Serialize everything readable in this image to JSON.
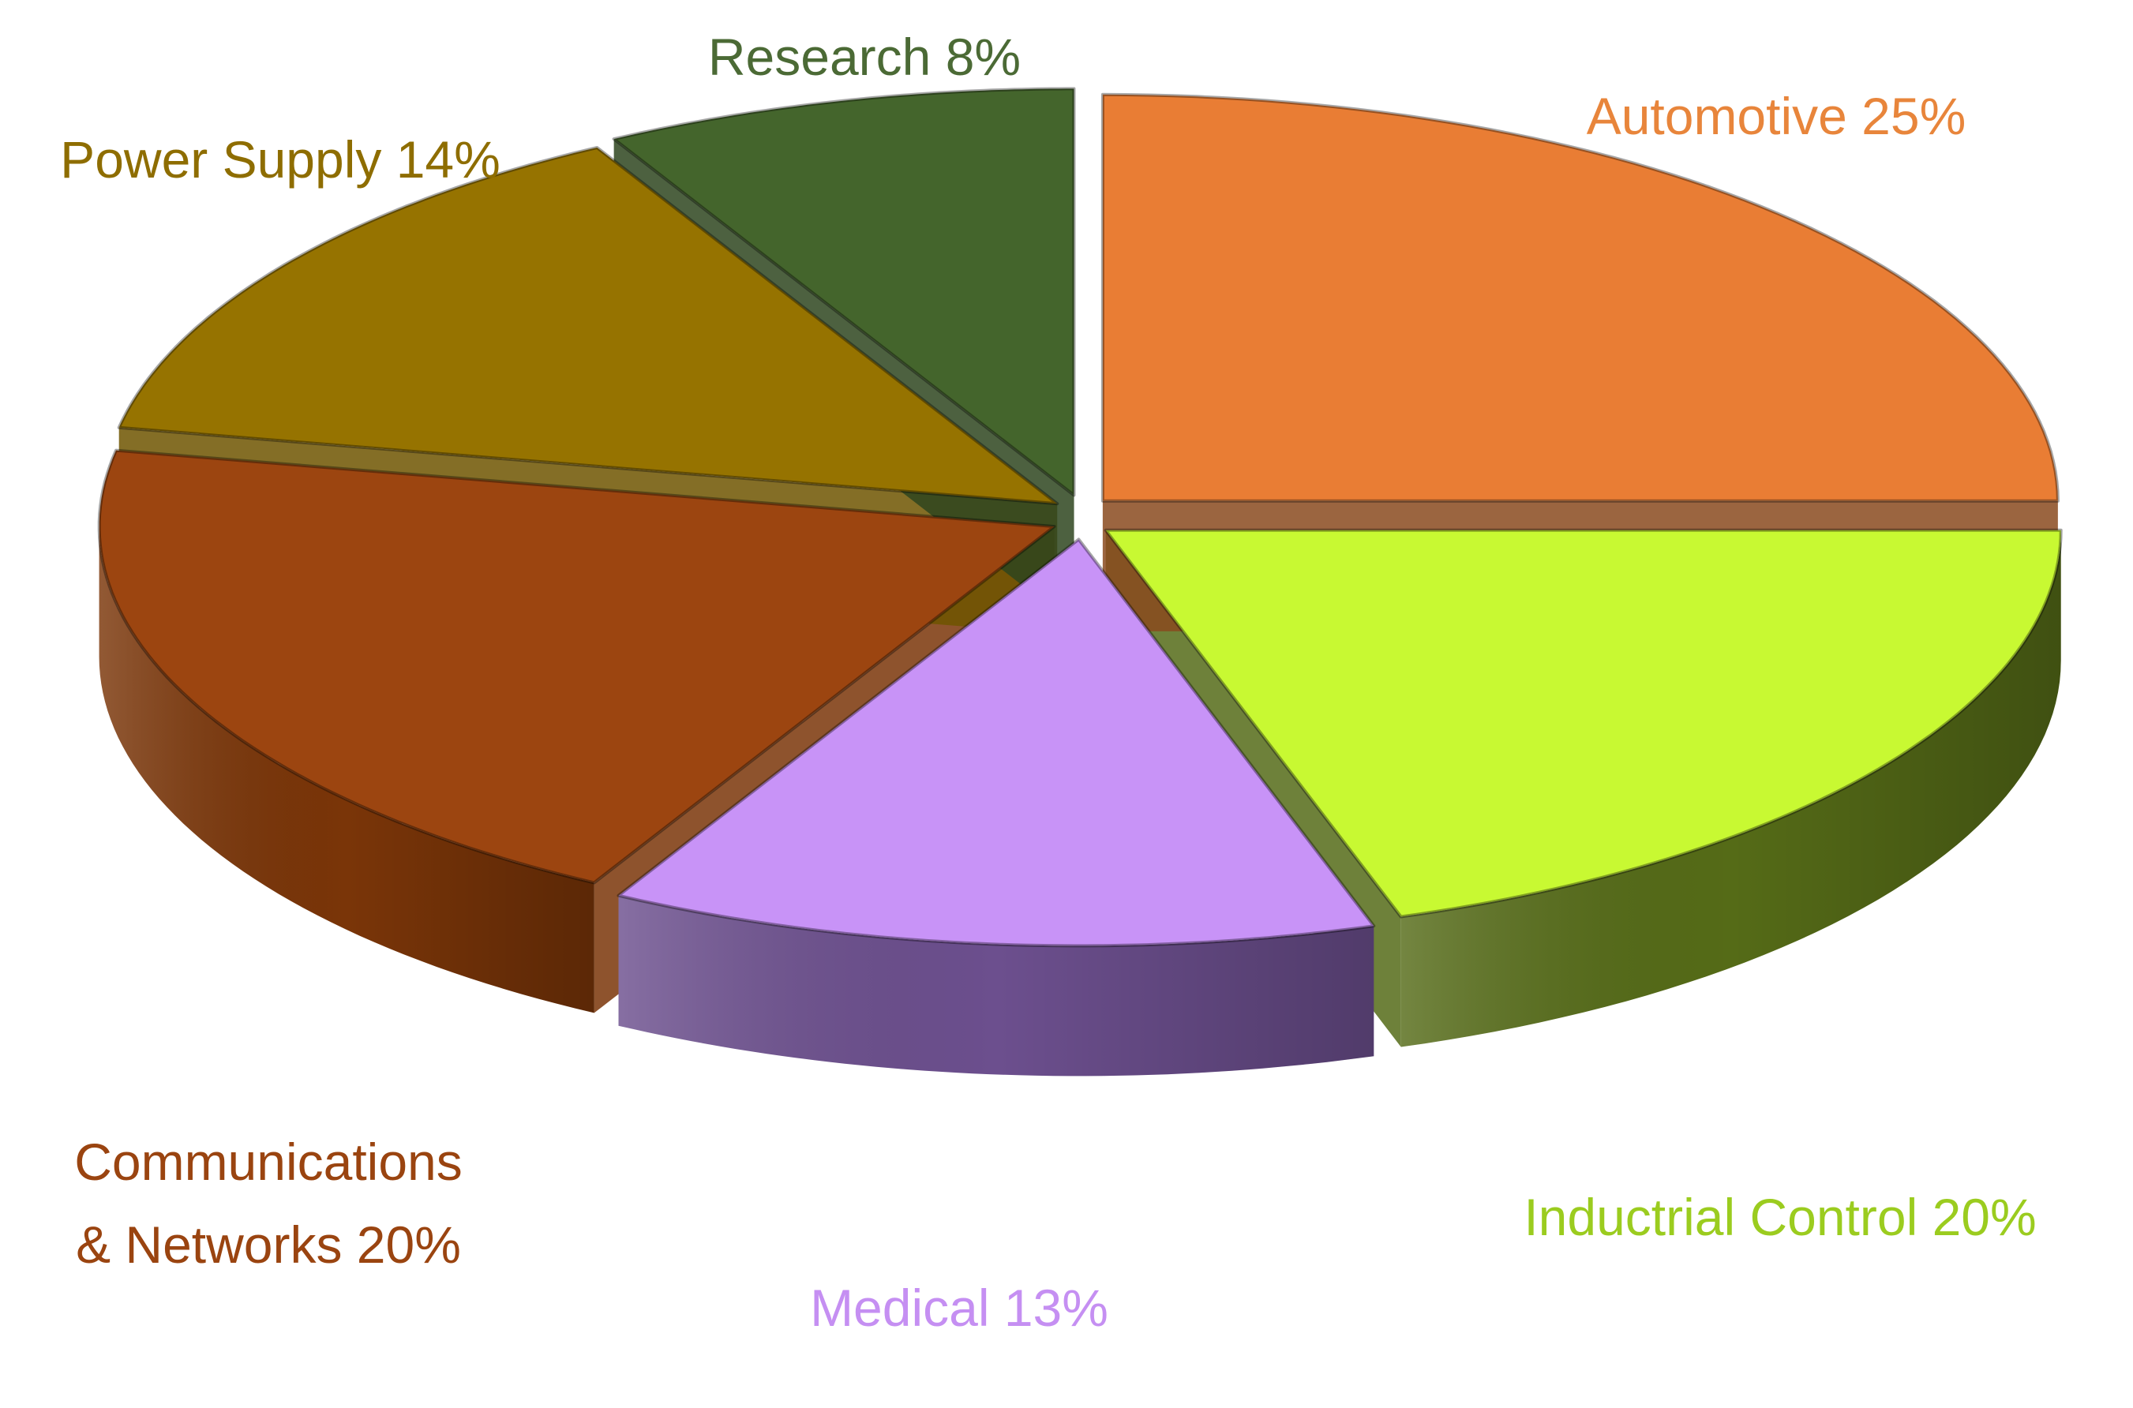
{
  "chart_data": {
    "type": "pie",
    "style": "3d-exploded",
    "title": "",
    "slices": [
      {
        "label": "Automotive 25%",
        "name": "Automotive",
        "value": 25,
        "color": "#E97D34",
        "side_color": "#8A4A1E"
      },
      {
        "label": "Inductrial Control 20%",
        "name": "Inductrial Control",
        "value": 20,
        "color": "#C8F932",
        "side_color": "#556B17"
      },
      {
        "label": "Medical 13%",
        "name": "Medical",
        "value": 13,
        "color": "#C893F7",
        "side_color": "#6C4F8E"
      },
      {
        "label": "Communications\n& Networks 20%",
        "name": "Communications & Networks",
        "value": 20,
        "color": "#9C4510",
        "side_color": "#7A3508"
      },
      {
        "label": "Power Supply 14%",
        "name": "Power Supply",
        "value": 14,
        "color": "#967300",
        "side_color": "#6E5500"
      },
      {
        "label": "Research 8%",
        "name": "Research",
        "value": 8,
        "color": "#44652C",
        "side_color": "#2E451E"
      }
    ],
    "label_colors": {
      "Automotive": "#E8853B",
      "Inductrial Control": "#9BCC1F",
      "Medical": "#C58FF2",
      "Communications & Networks": "#9A4410",
      "Power Supply": "#8E6D00",
      "Research": "#4B6A35"
    },
    "start_angle_deg": 90,
    "direction": "clockwise",
    "legend": "none"
  }
}
